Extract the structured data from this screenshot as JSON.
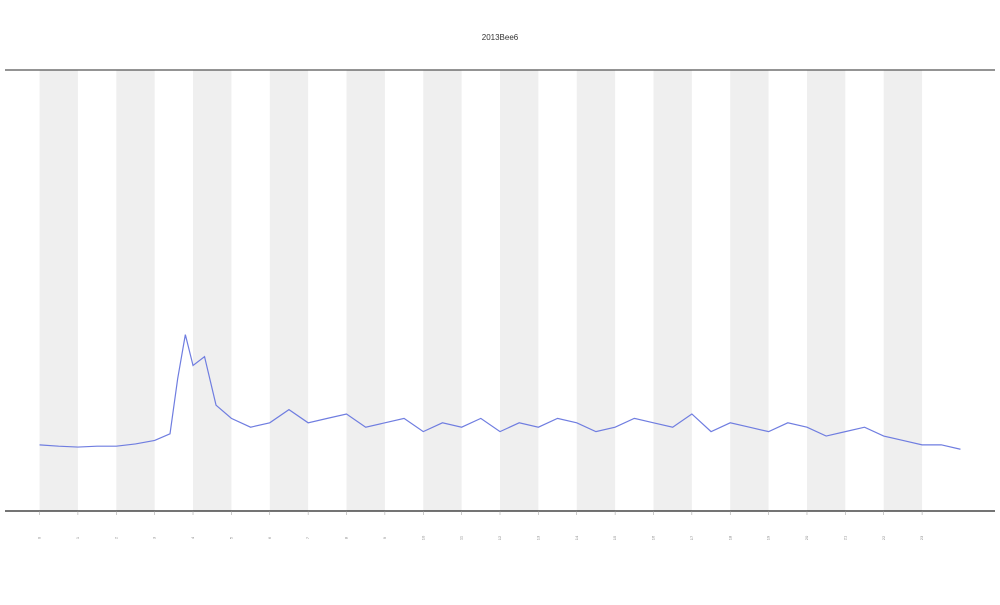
{
  "chart_data": {
    "type": "line",
    "title": "2013Bee6",
    "x": [
      0,
      0.5,
      1,
      1.5,
      2,
      2.5,
      3,
      3.4,
      3.6,
      3.8,
      4.0,
      4.3,
      4.6,
      5,
      5.5,
      6,
      6.5,
      7,
      7.5,
      8,
      8.5,
      9,
      9.5,
      10,
      10.5,
      11,
      11.5,
      12,
      12.5,
      13,
      13.5,
      14,
      14.5,
      15,
      15.5,
      16,
      16.5,
      17,
      17.5,
      18,
      18.5,
      19,
      19.5,
      20,
      20.5,
      21,
      21.5,
      22,
      22.5,
      23,
      23.5,
      24
    ],
    "series": [
      {
        "color": "#6f7de0",
        "values": [
          15,
          14.7,
          14.5,
          14.7,
          14.7,
          15.2,
          16,
          17.5,
          30,
          40,
          33,
          35,
          24,
          21,
          19,
          20,
          23,
          20,
          21,
          22,
          19,
          20,
          21,
          18,
          20,
          19,
          21,
          18,
          20,
          19,
          21,
          20,
          18,
          19,
          21,
          20,
          19,
          22,
          18,
          20,
          19,
          18,
          20,
          19,
          17,
          18,
          19,
          17,
          16,
          15,
          15,
          14
        ]
      }
    ],
    "xlim": [
      -0.9,
      24.9
    ],
    "ylim": [
      0,
      100
    ],
    "xticks": [
      0,
      1,
      2,
      3,
      4,
      5,
      6,
      7,
      8,
      9,
      10,
      11,
      12,
      13,
      14,
      15,
      16,
      17,
      18,
      19,
      20,
      21,
      22,
      23
    ]
  }
}
